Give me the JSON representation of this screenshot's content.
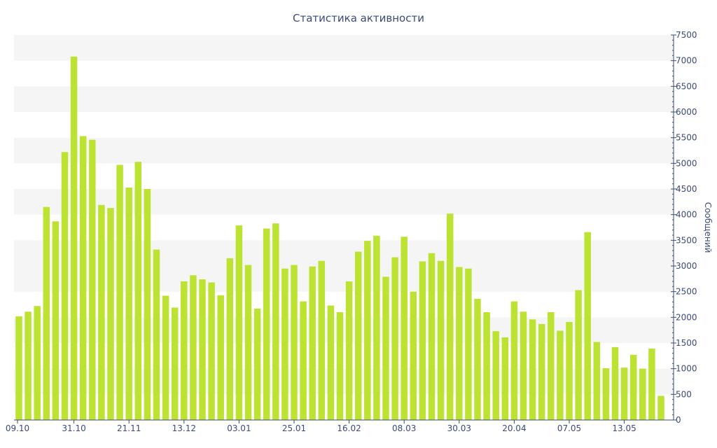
{
  "chart_data": {
    "type": "bar",
    "title": "Статистика активности",
    "ylabel": "Сообщений",
    "xlabel": "",
    "ylim": [
      0,
      7500
    ],
    "y_ticks": [
      0,
      500,
      1000,
      1500,
      2000,
      2500,
      3000,
      3500,
      4000,
      4500,
      5000,
      5500,
      6000,
      6500,
      7000,
      7500
    ],
    "y_axis_side": "right",
    "x_tick_labels": [
      {
        "index": 0,
        "label": "09.10"
      },
      {
        "index": 6,
        "label": "31.10"
      },
      {
        "index": 12,
        "label": "21.11"
      },
      {
        "index": 18,
        "label": "13.12"
      },
      {
        "index": 24,
        "label": "03.01"
      },
      {
        "index": 30,
        "label": "25.01"
      },
      {
        "index": 36,
        "label": "16.02"
      },
      {
        "index": 42,
        "label": "08.03"
      },
      {
        "index": 48,
        "label": "30.03"
      },
      {
        "index": 54,
        "label": "20.04"
      },
      {
        "index": 60,
        "label": "07.05"
      },
      {
        "index": 66,
        "label": "13.05"
      }
    ],
    "values": [
      2020,
      2110,
      2220,
      4150,
      3870,
      5220,
      7080,
      5530,
      5460,
      4190,
      4130,
      4970,
      4530,
      5030,
      4500,
      3320,
      2420,
      2190,
      2700,
      2820,
      2740,
      2680,
      2430,
      3150,
      3790,
      3020,
      2170,
      3730,
      3830,
      2950,
      3020,
      2310,
      2990,
      3100,
      2230,
      2100,
      2700,
      3280,
      3490,
      3590,
      2790,
      3170,
      3570,
      2500,
      3090,
      3250,
      3100,
      4020,
      2980,
      2950,
      2360,
      2100,
      1730,
      1610,
      2310,
      2110,
      1960,
      1870,
      2100,
      1740,
      1910,
      2530,
      3660,
      1520,
      1010,
      1420,
      1020,
      1270,
      1000,
      1390,
      470
    ],
    "grid": "alternating-bands",
    "colors": {
      "bar": "#bde332",
      "text": "#3a4a7a",
      "band": "#f5f5f5",
      "axis": "#3a4a7a"
    }
  }
}
